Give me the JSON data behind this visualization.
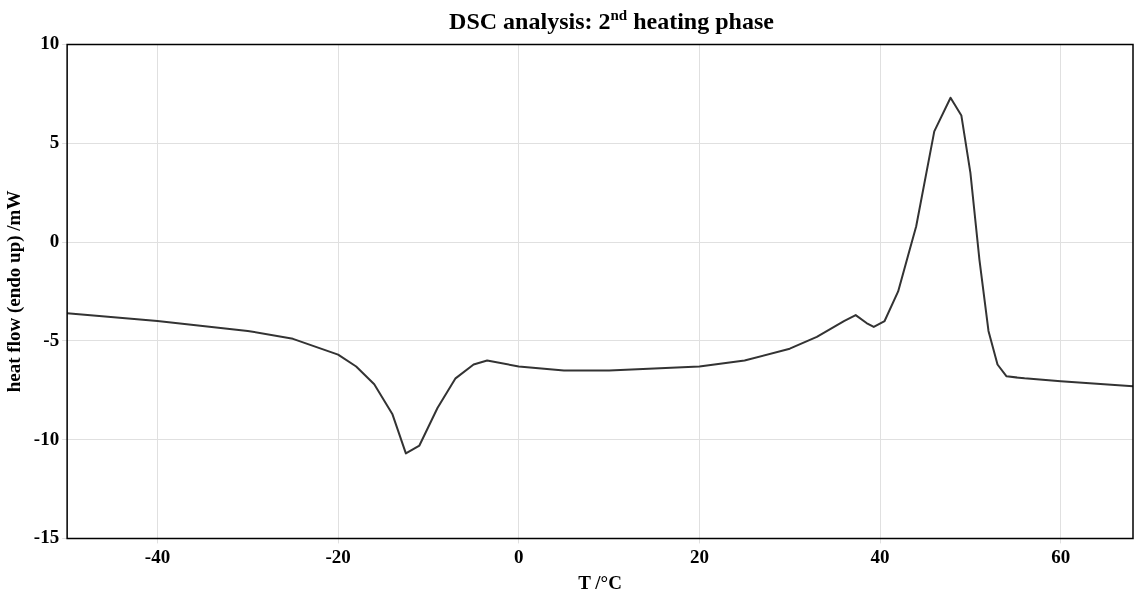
{
  "chart_data": {
    "type": "line",
    "title": "DSC analysis: 2$^{nd}$ heating phase",
    "xlabel": "T /°C",
    "ylabel": "heat flow (endo up) /mW",
    "xlim": [
      -50,
      68
    ],
    "xticks": [
      -40,
      -20,
      0,
      20,
      40,
      60
    ],
    "ylim": [
      -15,
      10
    ],
    "yticks": [
      -15,
      -10,
      -5,
      0,
      5,
      10
    ],
    "grid": true,
    "legend": false,
    "marker": "none",
    "line_style": "solid",
    "series": [
      {
        "color": "#333333",
        "x": [
          -50,
          -40,
          -30,
          -25,
          -20,
          -18,
          -16,
          -14,
          -12.5,
          -11,
          -9,
          -7,
          -5,
          -3.5,
          0,
          5,
          10,
          20,
          25,
          30,
          33,
          36,
          37.3,
          38.5,
          39.3,
          40.5,
          42,
          44,
          46,
          47.8,
          49,
          50,
          51,
          52,
          53,
          54,
          56,
          60,
          68
        ],
        "values": [
          -3.6,
          -4.0,
          -4.5,
          -4.9,
          -5.7,
          -6.3,
          -7.2,
          -8.7,
          -10.7,
          -10.3,
          -8.4,
          -6.9,
          -6.2,
          -6.0,
          -6.3,
          -6.5,
          -6.5,
          -6.3,
          -6.0,
          -5.4,
          -4.8,
          -4.0,
          -3.7,
          -4.1,
          -4.3,
          -4.0,
          -2.5,
          0.8,
          5.6,
          7.3,
          6.4,
          3.5,
          -0.9,
          -4.5,
          -6.2,
          -6.8,
          -6.9,
          -7.05,
          -7.3
        ]
      }
    ]
  }
}
